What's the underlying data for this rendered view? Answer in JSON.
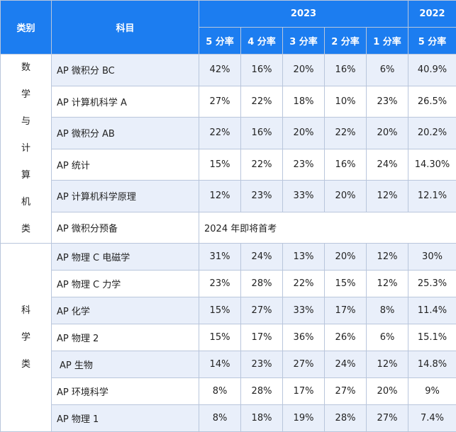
{
  "header": {
    "category": "类别",
    "subject": "科目",
    "year_2023": "2023",
    "year_2022": "2022",
    "rate_columns": [
      "5 分率",
      "4 分率",
      "3 分率",
      "2 分率",
      "1 分率"
    ],
    "rate_2022": "5 分率"
  },
  "groups": [
    {
      "category_chars": [
        "数",
        "学",
        "与",
        "计",
        "算",
        "机",
        "类"
      ],
      "rows": [
        {
          "subject": "AP 微积分 BC",
          "values": [
            "42%",
            "16%",
            "20%",
            "16%",
            "6%"
          ],
          "v2022": "40.9%"
        },
        {
          "subject": "AP 计算机科学 A",
          "values": [
            "27%",
            "22%",
            "18%",
            "10%",
            "23%"
          ],
          "v2022": "26.5%"
        },
        {
          "subject": "AP 微积分 AB",
          "values": [
            "22%",
            "16%",
            "20%",
            "22%",
            "20%"
          ],
          "v2022": "20.2%"
        },
        {
          "subject": "AP 统计",
          "values": [
            "15%",
            "22%",
            "23%",
            "16%",
            "24%"
          ],
          "v2022": "14.30%"
        },
        {
          "subject": "AP 计算机科学原理",
          "values": [
            "12%",
            "23%",
            "33%",
            "20%",
            "12%"
          ],
          "v2022": "12.1%"
        },
        {
          "subject": "AP 微积分预备",
          "note": "2024 年即将首考"
        }
      ]
    },
    {
      "category_chars": [
        "科",
        "学",
        "类"
      ],
      "rows": [
        {
          "subject": "AP 物理 C 电磁学",
          "values": [
            "31%",
            "24%",
            "13%",
            "20%",
            "12%"
          ],
          "v2022": "30%"
        },
        {
          "subject": "AP 物理 C 力学",
          "values": [
            "23%",
            "28%",
            "22%",
            "15%",
            "12%"
          ],
          "v2022": "25.3%"
        },
        {
          "subject": "AP 化学",
          "values": [
            "15%",
            "27%",
            "33%",
            "17%",
            "8%"
          ],
          "v2022": "11.4%"
        },
        {
          "subject": "AP 物理 2",
          "values": [
            "15%",
            "17%",
            "36%",
            "26%",
            "6%"
          ],
          "v2022": "15.1%"
        },
        {
          "subject": "AP 生物",
          "values": [
            "14%",
            "23%",
            "27%",
            "24%",
            "12%"
          ],
          "v2022": "14.8%"
        },
        {
          "subject": "AP 环境科学",
          "values": [
            "8%",
            "28%",
            "17%",
            "27%",
            "20%"
          ],
          "v2022": "9%"
        },
        {
          "subject": "AP 物理 1",
          "values": [
            "8%",
            "18%",
            "19%",
            "28%",
            "27%"
          ],
          "v2022": "7.4%"
        }
      ]
    }
  ]
}
